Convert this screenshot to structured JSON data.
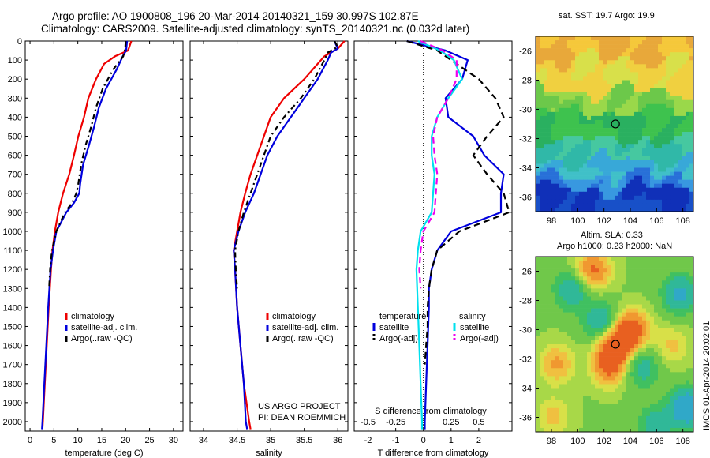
{
  "header": {
    "title1": "Argo profile: AO 1900808_196 20-Mar-2014 20140321_159 30.997S 102.87E",
    "title2": "Climatology: CARS2009. Satellite-adjusted climatology: synTS_20140321.nc (0.032d later)"
  },
  "maps": {
    "sst_title": "sat. SST: 19.7 Argo: 19.9",
    "sla_title1": "Altim. SLA: 0.33",
    "sla_title2": "Argo h1000: 0.23 h2000: NaN",
    "credit": "IMOS 01-Apr-2014 20:02:01",
    "lon_ticks": [
      "98",
      "100",
      "102",
      "104",
      "106",
      "108"
    ],
    "lat_ticks": [
      "-26",
      "-28",
      "-30",
      "-32",
      "-34",
      "-36"
    ],
    "argo_position": {
      "lon": 102.87,
      "lat": -30.997
    }
  },
  "project": {
    "line1": "US ARGO PROJECT",
    "line2": "PI: DEAN ROEMMICH"
  },
  "chart_data": [
    {
      "type": "line",
      "xlabel": "temperature (deg C)",
      "ylabel": "",
      "xlim": [
        -1,
        32
      ],
      "ylim": [
        2050,
        0
      ],
      "xticks": [
        "0",
        "5",
        "10",
        "15",
        "20",
        "25",
        "30"
      ],
      "yticks": [
        "0",
        "100",
        "200",
        "300",
        "400",
        "500",
        "600",
        "700",
        "800",
        "900",
        "1000",
        "1100",
        "1200",
        "1300",
        "1400",
        "1500",
        "1600",
        "1700",
        "1800",
        "1900",
        "2000"
      ],
      "legend": [
        "climatology",
        "satellite-adj. clim.",
        "Argo(..raw -QC)"
      ],
      "series": [
        {
          "name": "climatology",
          "color": "#ee0000",
          "depth": [
            0,
            50,
            80,
            120,
            200,
            300,
            400,
            500,
            600,
            700,
            800,
            900,
            1000,
            1100,
            1200,
            1400,
            1600,
            1800,
            2000,
            2040
          ],
          "values": [
            21.2,
            20.5,
            17.8,
            15.5,
            13.8,
            12.2,
            11.3,
            10.1,
            9.2,
            8.2,
            6.9,
            5.9,
            5.2,
            4.7,
            4.4,
            3.9,
            3.5,
            3.1,
            2.7,
            2.6
          ]
        },
        {
          "name": "satellite-adj. clim.",
          "color": "#0000dd",
          "depth": [
            0,
            50,
            80,
            150,
            250,
            350,
            450,
            550,
            650,
            750,
            800,
            850,
            900,
            1000,
            1100,
            1200,
            1400,
            1600,
            1800,
            2000,
            2040
          ],
          "values": [
            20.3,
            20.1,
            19.4,
            18.1,
            15.9,
            14.4,
            13.4,
            12.3,
            11.1,
            10.5,
            10.3,
            9.2,
            7.6,
            5.5,
            4.8,
            4.3,
            3.8,
            3.4,
            3.0,
            2.6,
            2.5
          ]
        },
        {
          "name": "Argo(..raw -QC)",
          "color": "#000000",
          "depth": [
            0,
            40,
            80,
            150,
            250,
            350,
            450,
            550,
            650,
            750,
            800,
            850,
            900,
            1000,
            1100,
            1200,
            1300
          ],
          "values": [
            20.0,
            19.9,
            19.5,
            17.4,
            15.2,
            13.8,
            12.8,
            11.6,
            10.7,
            10.1,
            9.7,
            8.8,
            7.3,
            5.5,
            4.6,
            4.2,
            4.0
          ]
        }
      ]
    },
    {
      "type": "line",
      "xlabel": "salinity",
      "ylabel": "",
      "xlim": [
        33.8,
        36.15
      ],
      "ylim": [
        2050,
        0
      ],
      "xticks": [
        "34",
        "34.5",
        "35",
        "35.5",
        "36"
      ],
      "legend": [
        "climatology",
        "satellite-adj. clim.",
        "Argo(..raw -QC)"
      ],
      "series": [
        {
          "name": "climatology",
          "color": "#ee0000",
          "depth": [
            0,
            40,
            80,
            120,
            200,
            300,
            400,
            500,
            600,
            700,
            800,
            900,
            1000,
            1100,
            1200,
            1400,
            1600,
            1800,
            2000,
            2040
          ],
          "values": [
            36.1,
            36.0,
            35.8,
            35.7,
            35.5,
            35.2,
            35.0,
            34.9,
            34.8,
            34.7,
            34.62,
            34.55,
            34.5,
            34.45,
            34.47,
            34.5,
            34.55,
            34.6,
            34.68,
            34.7
          ]
        },
        {
          "name": "satellite-adj. clim.",
          "color": "#0000dd",
          "depth": [
            0,
            40,
            60,
            100,
            200,
            300,
            400,
            500,
            600,
            700,
            800,
            900,
            1000,
            1100,
            1200,
            1400,
            1600,
            1800,
            2000,
            2040
          ],
          "values": [
            35.95,
            36.0,
            35.9,
            35.85,
            35.7,
            35.5,
            35.3,
            35.1,
            34.95,
            34.85,
            34.75,
            34.62,
            34.52,
            34.45,
            34.47,
            34.5,
            34.55,
            34.6,
            34.63,
            34.65
          ]
        },
        {
          "name": "Argo(..raw -QC)",
          "color": "#000000",
          "depth": [
            0,
            30,
            60,
            100,
            200,
            300,
            400,
            500,
            600,
            700,
            800,
            900,
            1000,
            1100,
            1200,
            1300
          ],
          "values": [
            35.95,
            36.0,
            35.85,
            35.8,
            35.65,
            35.45,
            35.2,
            35.0,
            34.9,
            34.8,
            34.7,
            34.6,
            34.52,
            34.47,
            34.48,
            34.5
          ]
        }
      ]
    },
    {
      "type": "line",
      "xlabel": "T difference from climatology",
      "xlabel2": "S difference from climatology",
      "ylabel": "",
      "xlim": [
        -2.5,
        3.2
      ],
      "ylim": [
        2050,
        0
      ],
      "xticks": [
        "-2",
        "-1",
        "0",
        "1",
        "2"
      ],
      "xticks2": [
        "-0.5",
        "-0.25",
        "0",
        "0.25",
        "0.5"
      ],
      "legend_titles": [
        "temperature",
        "salinity"
      ],
      "legend": [
        "satellite",
        "Argo(-adj)",
        "satellite",
        "Argo(-adj)"
      ],
      "series": [
        {
          "name": "satellite",
          "color": "#0000dd",
          "depth": [
            0,
            50,
            100,
            200,
            300,
            400,
            500,
            600,
            700,
            800,
            900,
            1000,
            1100,
            1200,
            1300,
            1400,
            1600,
            1800,
            2000,
            2040
          ],
          "values": [
            -0.6,
            0.8,
            1.6,
            1.4,
            0.8,
            0.9,
            1.8,
            2.2,
            2.9,
            2.8,
            2.8,
            1.0,
            0.5,
            0.3,
            0.2,
            0.2,
            0.15,
            0.1,
            0.05,
            0.05
          ]
        },
        {
          "name": "Argo(-adj)",
          "color": "#000000",
          "depth": [
            0,
            50,
            100,
            200,
            300,
            400,
            500,
            600,
            700,
            800,
            900,
            1000,
            1100,
            1200,
            1300,
            1400,
            1500,
            1600,
            1700
          ],
          "values": [
            -0.6,
            0.5,
            1.0,
            2.0,
            2.6,
            2.9,
            2.3,
            1.8,
            2.3,
            2.9,
            3.1,
            1.3,
            0.5,
            0.3,
            0.2,
            0.15,
            0.15,
            0.1,
            0.05
          ]
        },
        {
          "name": "satellite",
          "color": "#00e0ee",
          "depth": [
            0,
            50,
            100,
            200,
            300,
            400,
            500,
            600,
            700,
            800,
            900,
            1000,
            1100,
            1200,
            1400,
            1600,
            1800,
            2000,
            2040
          ],
          "values": [
            -0.2,
            0.6,
            1.1,
            1.4,
            0.9,
            0.5,
            0.3,
            0.3,
            0.4,
            0.35,
            0.3,
            -0.1,
            -0.2,
            -0.25,
            -0.2,
            -0.15,
            -0.1,
            -0.05,
            -0.05
          ]
        },
        {
          "name": "Argo(-adj)",
          "color": "#ee00ee",
          "depth": [
            0,
            50,
            100,
            200,
            300,
            400,
            500,
            600,
            700,
            800,
            900,
            1000,
            1100,
            1200,
            1300
          ],
          "values": [
            -0.1,
            0.7,
            1.2,
            1.2,
            0.9,
            0.5,
            0.35,
            0.4,
            0.5,
            0.45,
            0.4,
            0.0,
            -0.1,
            -0.15,
            -0.1
          ]
        }
      ]
    }
  ]
}
